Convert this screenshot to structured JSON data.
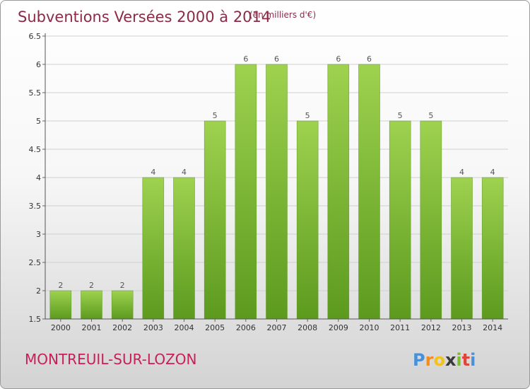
{
  "chart_data": {
    "type": "bar",
    "title": "Subventions Versées 2000 à 2014",
    "subtitle": "(en milliers d'€)",
    "categories": [
      "2000",
      "2001",
      "2002",
      "2003",
      "2004",
      "2005",
      "2006",
      "2007",
      "2008",
      "2009",
      "2010",
      "2011",
      "2012",
      "2013",
      "2014"
    ],
    "values": [
      2,
      2,
      2,
      4,
      4,
      5,
      6,
      6,
      5,
      6,
      6,
      5,
      5,
      4,
      4
    ],
    "ylim": [
      1.5,
      6.5
    ],
    "yticks": [
      "1.5",
      "2",
      "2.5",
      "3",
      "3.5",
      "4",
      "4.5",
      "5",
      "5.5",
      "6",
      "6.5"
    ],
    "grid": true,
    "bar_color": "#7fbf3a"
  },
  "footer": {
    "commune": "MONTREUIL-SUR-LOZON",
    "logo": {
      "letters": [
        "P",
        "r",
        "o",
        "x",
        "i",
        "t",
        "i"
      ],
      "colors": [
        "#4a90d9",
        "#f28c1e",
        "#f2c21e",
        "#3a3a3a",
        "#7dbb2f",
        "#e0443a",
        "#4a90d9"
      ]
    }
  }
}
